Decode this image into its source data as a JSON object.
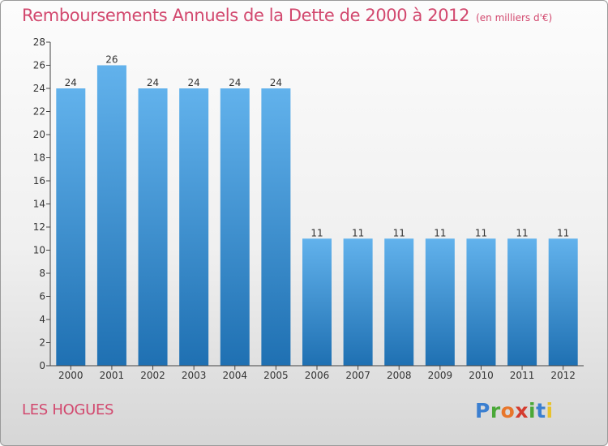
{
  "title": "Remboursements Annuels de la Dette de 2000 à 2012",
  "subtitle": "(en milliers d'€)",
  "commune": "LES HOGUES",
  "logo": {
    "text": "Proxiti",
    "colors": [
      "#3b7fd0",
      "#4aa838",
      "#e8762b",
      "#d43c2f",
      "#4aa838",
      "#3b7fd0",
      "#e8c22b"
    ]
  },
  "colors": {
    "title": "#d2486e",
    "bar_light": "#62b2ec",
    "bar_dark": "#1f70b2",
    "axis": "#444444"
  },
  "chart_data": {
    "type": "bar",
    "categories": [
      "2000",
      "2001",
      "2002",
      "2003",
      "2004",
      "2005",
      "2006",
      "2007",
      "2008",
      "2009",
      "2010",
      "2011",
      "2012"
    ],
    "values": [
      24,
      26,
      24,
      24,
      24,
      24,
      11,
      11,
      11,
      11,
      11,
      11,
      11
    ],
    "data_labels": [
      "24",
      "26",
      "24",
      "24",
      "24",
      "24",
      "11",
      "11",
      "11",
      "11",
      "11",
      "11",
      "11"
    ],
    "y_ticks": [
      "0",
      "2",
      "4",
      "6",
      "8",
      "10",
      "12",
      "14",
      "16",
      "18",
      "20",
      "22",
      "24",
      "26",
      "28"
    ],
    "ylim": [
      0,
      28
    ],
    "title": "Remboursements Annuels de la Dette de 2000 à 2012",
    "xlabel": "",
    "ylabel": "",
    "grid": false,
    "legend": "none"
  }
}
